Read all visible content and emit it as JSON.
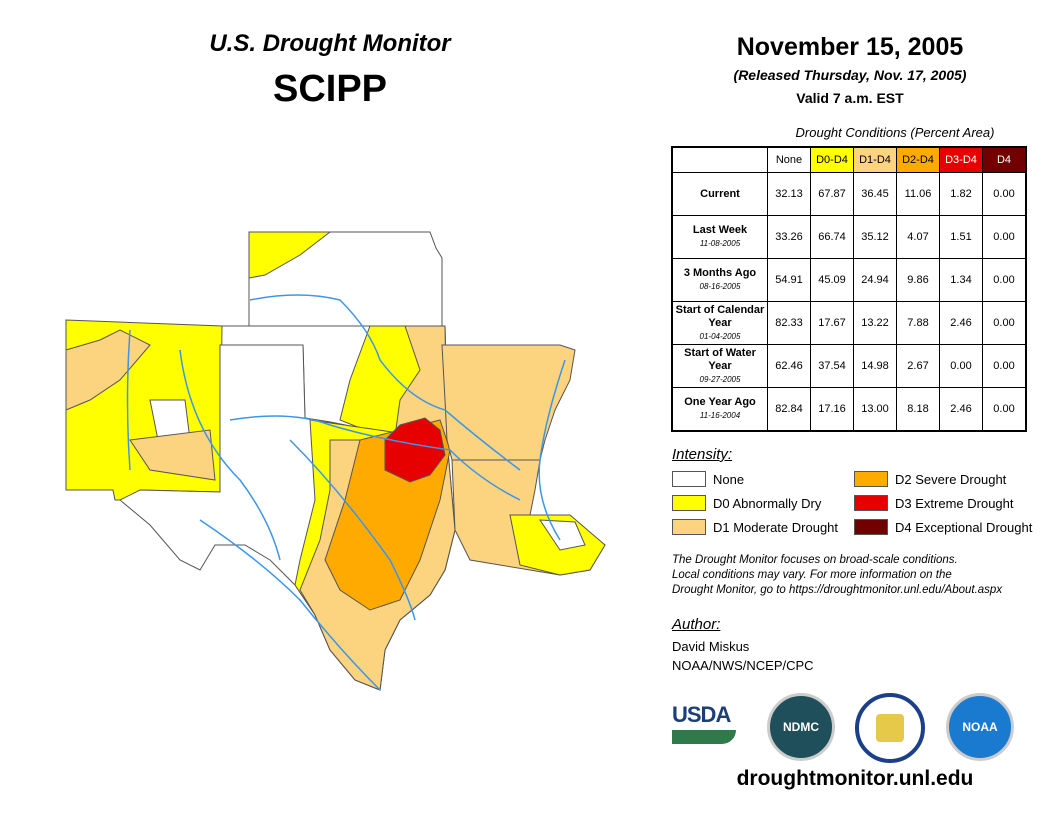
{
  "header": {
    "title": "U.S. Drought Monitor",
    "region": "SCIPP",
    "date": "November 15, 2005",
    "released": "(Released Thursday, Nov. 17, 2005)",
    "valid": "Valid 7 a.m. EST"
  },
  "table": {
    "caption": "Drought Conditions (Percent Area)",
    "columns": [
      {
        "label": "None",
        "color": "#ffffff",
        "text": "#000000"
      },
      {
        "label": "D0-D4",
        "color": "#ffff00",
        "text": "#000000"
      },
      {
        "label": "D1-D4",
        "color": "#fcd37f",
        "text": "#000000"
      },
      {
        "label": "D2-D4",
        "color": "#ffaa00",
        "text": "#000000"
      },
      {
        "label": "D3-D4",
        "color": "#e60000",
        "text": "#ffffff"
      },
      {
        "label": "D4",
        "color": "#730000",
        "text": "#ffffff"
      }
    ],
    "rows": [
      {
        "label": "Current",
        "sub": "",
        "values": [
          "32.13",
          "67.87",
          "36.45",
          "11.06",
          "1.82",
          "0.00"
        ]
      },
      {
        "label": "Last Week",
        "sub": "11-08-2005",
        "values": [
          "33.26",
          "66.74",
          "35.12",
          "4.07",
          "1.51",
          "0.00"
        ]
      },
      {
        "label": "3 Months Ago",
        "sub": "08-16-2005",
        "values": [
          "54.91",
          "45.09",
          "24.94",
          "9.86",
          "1.34",
          "0.00"
        ]
      },
      {
        "label": "Start of Calendar Year",
        "sub": "01-04-2005",
        "values": [
          "82.33",
          "17.67",
          "13.22",
          "7.88",
          "2.46",
          "0.00"
        ]
      },
      {
        "label": "Start of Water Year",
        "sub": "09-27-2005",
        "values": [
          "62.46",
          "37.54",
          "14.98",
          "2.67",
          "0.00",
          "0.00"
        ]
      },
      {
        "label": "One Year Ago",
        "sub": "11-16-2004",
        "values": [
          "82.84",
          "17.16",
          "13.00",
          "8.18",
          "2.46",
          "0.00"
        ]
      }
    ]
  },
  "legend": {
    "title": "Intensity:",
    "items": [
      {
        "label": "None",
        "color": "#ffffff"
      },
      {
        "label": "D0 Abnormally Dry",
        "color": "#ffff00"
      },
      {
        "label": "D1 Moderate Drought",
        "color": "#fcd37f"
      },
      {
        "label": "D2 Severe Drought",
        "color": "#ffaa00"
      },
      {
        "label": "D3 Extreme Drought",
        "color": "#e60000"
      },
      {
        "label": "D4 Exceptional Drought",
        "color": "#730000"
      }
    ]
  },
  "note": [
    "The Drought Monitor focuses on broad-scale conditions.",
    "Local conditions may vary. For more information on the",
    "Drought Monitor, go to https://droughtmonitor.unl.edu/About.aspx"
  ],
  "author": {
    "title": "Author:",
    "name": "David Miskus",
    "org": "NOAA/NWS/NCEP/CPC"
  },
  "logos": [
    "USDA",
    "NDMC",
    "NOAA"
  ],
  "url": "droughtmonitor.unl.edu"
}
